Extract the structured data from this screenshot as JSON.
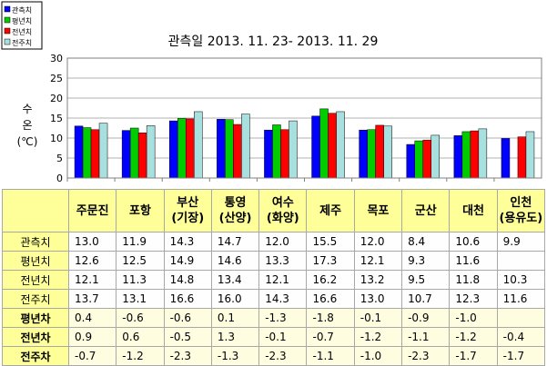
{
  "chart_data": {
    "type": "bar",
    "title": "관측일 2013. 11. 23-  2013. 11. 29",
    "ylabel": [
      "수",
      "온",
      "(℃)"
    ],
    "ylim": [
      0,
      30
    ],
    "yticks": [
      "0",
      "5",
      "10",
      "15",
      "20",
      "25",
      "30"
    ],
    "grid": true,
    "legend_position": "top-left",
    "categories": [
      "주문진",
      "포항",
      "부산 (기장)",
      "통영 (산양)",
      "여수 (화양)",
      "제주",
      "목포",
      "군산",
      "대천",
      "인천 (용유도)"
    ],
    "series": [
      {
        "name": "관측치",
        "color": "#0000ff",
        "values": [
          13.0,
          11.9,
          14.3,
          14.7,
          12.0,
          15.5,
          12.0,
          8.4,
          10.6,
          9.9
        ]
      },
      {
        "name": "평년치",
        "color": "#00cc00",
        "values": [
          12.6,
          12.5,
          14.9,
          14.6,
          13.3,
          17.3,
          12.1,
          9.3,
          11.6,
          null
        ]
      },
      {
        "name": "전년치",
        "color": "#ff0000",
        "values": [
          12.1,
          11.3,
          14.8,
          13.4,
          12.1,
          16.2,
          13.2,
          9.5,
          11.8,
          10.3
        ]
      },
      {
        "name": "전주치",
        "color": "#a8e0e0",
        "values": [
          13.7,
          13.1,
          16.6,
          16.0,
          14.3,
          16.6,
          13.0,
          10.7,
          12.3,
          11.6
        ]
      }
    ]
  },
  "table": {
    "headers": [
      [
        "주문진"
      ],
      [
        "포항"
      ],
      [
        "부산",
        "(기장)"
      ],
      [
        "통영",
        "(산양)"
      ],
      [
        "여수",
        "(화양)"
      ],
      [
        "제주"
      ],
      [
        "목포"
      ],
      [
        "군산"
      ],
      [
        "대천"
      ],
      [
        "인천",
        "(용유도)"
      ]
    ],
    "rows": [
      {
        "label": "관측치",
        "values": [
          "13.0",
          "11.9",
          "14.3",
          "14.7",
          "12.0",
          "15.5",
          "12.0",
          "8.4",
          "10.6",
          "9.9"
        ]
      },
      {
        "label": "평년치",
        "values": [
          "12.6",
          "12.5",
          "14.9",
          "14.6",
          "13.3",
          "17.3",
          "12.1",
          "9.3",
          "11.6",
          ""
        ]
      },
      {
        "label": "전년치",
        "values": [
          "12.1",
          "11.3",
          "14.8",
          "13.4",
          "12.1",
          "16.2",
          "13.2",
          "9.5",
          "11.8",
          "10.3"
        ]
      },
      {
        "label": "전주치",
        "values": [
          "13.7",
          "13.1",
          "16.6",
          "16.0",
          "14.3",
          "16.6",
          "13.0",
          "10.7",
          "12.3",
          "11.6"
        ]
      },
      {
        "label": "평년차",
        "diff": true,
        "values": [
          "0.4",
          "-0.6",
          "-0.6",
          "0.1",
          "-1.3",
          "-1.8",
          "-0.1",
          "-0.9",
          "-1.0",
          ""
        ]
      },
      {
        "label": "전년차",
        "diff": true,
        "values": [
          "0.9",
          "0.6",
          "-0.5",
          "1.3",
          "-0.1",
          "-0.7",
          "-1.2",
          "-1.1",
          "-1.2",
          "-0.4"
        ]
      },
      {
        "label": "전주차",
        "diff": true,
        "values": [
          "-0.7",
          "-1.2",
          "-2.3",
          "-1.3",
          "-2.3",
          "-1.1",
          "-1.0",
          "-2.3",
          "-1.7",
          "-1.7"
        ]
      }
    ]
  }
}
